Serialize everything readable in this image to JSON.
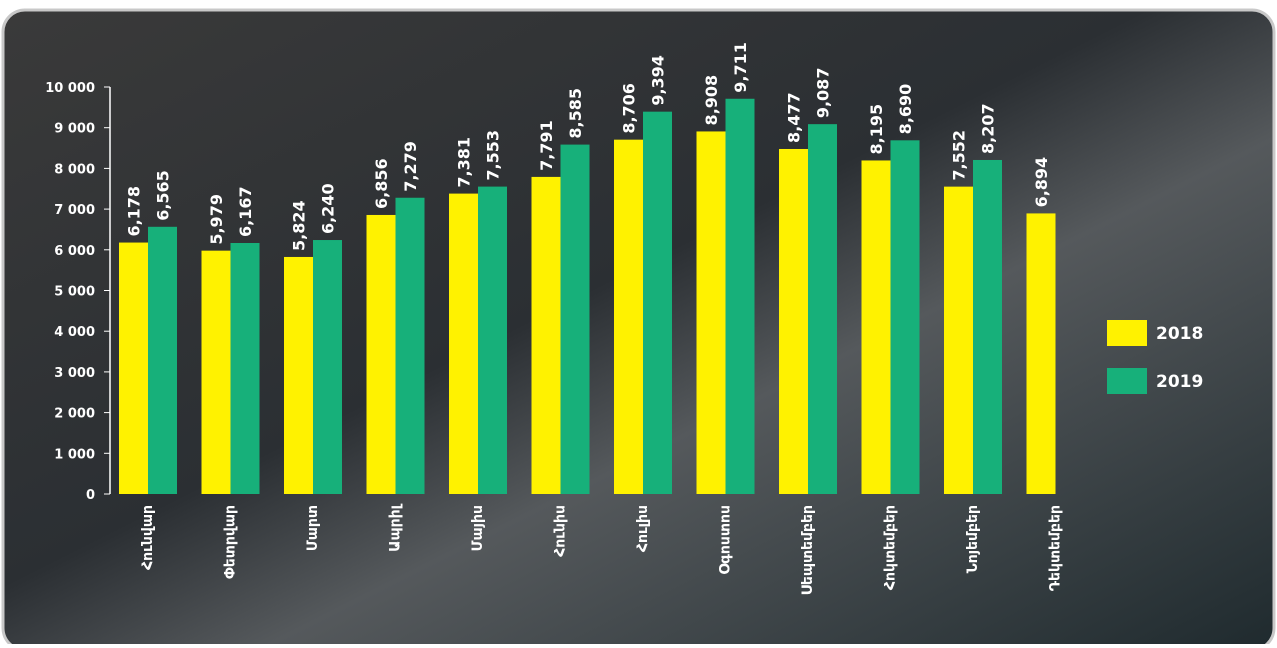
{
  "chart_data": {
    "type": "bar",
    "categories": [
      "Հունվար",
      "Փետրվար",
      "Մարտ",
      "Ապրիլ",
      "Մայիս",
      "Հունիս",
      "Հուլիս",
      "Օգոստոս",
      "Սեպտեմբեր",
      "Հոկտեմբեր",
      "Նոյեմբեր",
      "Դեկտեմբեր"
    ],
    "series": [
      {
        "name": "2018",
        "color": "#fff200",
        "values": [
          6178,
          5979,
          5824,
          6856,
          7381,
          7791,
          8706,
          8908,
          8477,
          8195,
          7552,
          6894
        ],
        "value_labels": [
          "6,178",
          "5,979",
          "5,824",
          "6,856",
          "7,381",
          "7,791",
          "8,706",
          "8,908",
          "8,477",
          "8,195",
          "7,552",
          "6,894"
        ]
      },
      {
        "name": "2019",
        "color": "#17b07a",
        "values": [
          6565,
          6167,
          6240,
          7279,
          7553,
          8585,
          9394,
          9711,
          9087,
          8690,
          8207,
          null
        ],
        "value_labels": [
          "6,565",
          "6,167",
          "6,240",
          "7,279",
          "7,553",
          "8,585",
          "9,394",
          "9,711",
          "9,087",
          "8,690",
          "8,207",
          null
        ]
      }
    ],
    "ylim": [
      0,
      10000
    ],
    "yticks": [
      0,
      {
        "value": 1000,
        "label": "1 000"
      },
      {
        "value": 2000,
        "label": "2 000"
      },
      {
        "value": 3000,
        "label": "3 000"
      },
      {
        "value": 4000,
        "label": "4 000"
      },
      {
        "value": 5000,
        "label": "5 000"
      },
      {
        "value": 6000,
        "label": "6 000"
      },
      {
        "value": 7000,
        "label": "7 000"
      },
      {
        "value": 8000,
        "label": "8 000"
      },
      {
        "value": 9000,
        "label": "9 000"
      },
      {
        "value": 10000,
        "label": "10 000"
      }
    ],
    "legend": "right"
  }
}
